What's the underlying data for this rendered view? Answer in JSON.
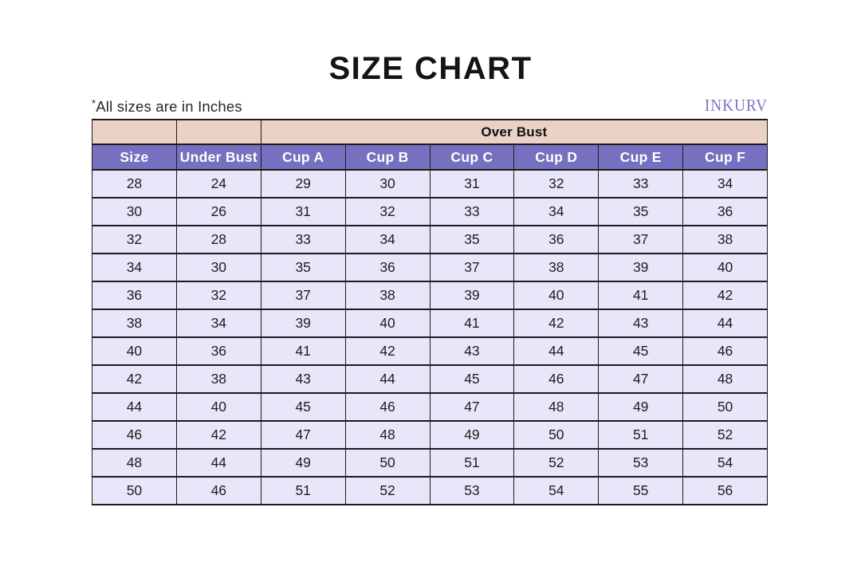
{
  "page": {
    "title": "SIZE CHART",
    "note_mark": "*",
    "note_text": "All sizes are in Inches",
    "brand": "INKURV"
  },
  "chart_data": {
    "type": "table",
    "title": "SIZE CHART",
    "units": "Inches",
    "over_bust_label": "Over Bust",
    "columns": [
      "Size",
      "Under Bust",
      "Cup A",
      "Cup B",
      "Cup C",
      "Cup D",
      "Cup E",
      "Cup F"
    ],
    "over_bust_columns": [
      "Cup A",
      "Cup B",
      "Cup C",
      "Cup D",
      "Cup E",
      "Cup F"
    ],
    "rows": [
      [
        28,
        24,
        29,
        30,
        31,
        32,
        33,
        34
      ],
      [
        30,
        26,
        31,
        32,
        33,
        34,
        35,
        36
      ],
      [
        32,
        28,
        33,
        34,
        35,
        36,
        37,
        38
      ],
      [
        34,
        30,
        35,
        36,
        37,
        38,
        39,
        40
      ],
      [
        36,
        32,
        37,
        38,
        39,
        40,
        41,
        42
      ],
      [
        38,
        34,
        39,
        40,
        41,
        42,
        43,
        44
      ],
      [
        40,
        36,
        41,
        42,
        43,
        44,
        45,
        46
      ],
      [
        42,
        38,
        43,
        44,
        45,
        46,
        47,
        48
      ],
      [
        44,
        40,
        45,
        46,
        47,
        48,
        49,
        50
      ],
      [
        46,
        42,
        47,
        48,
        49,
        50,
        51,
        52
      ],
      [
        48,
        44,
        49,
        50,
        51,
        52,
        53,
        54
      ],
      [
        50,
        46,
        51,
        52,
        53,
        54,
        55,
        56
      ]
    ]
  },
  "colors": {
    "pink_header": "#ecd2c5",
    "purple_header": "#7570bf",
    "row_bg": "#e8e6f8",
    "border": "#1c1c1c",
    "header_text": "#ffffff",
    "brand_purple": "#7b73c8",
    "title_text": "#141414",
    "body_text": "#1e1e1e"
  }
}
